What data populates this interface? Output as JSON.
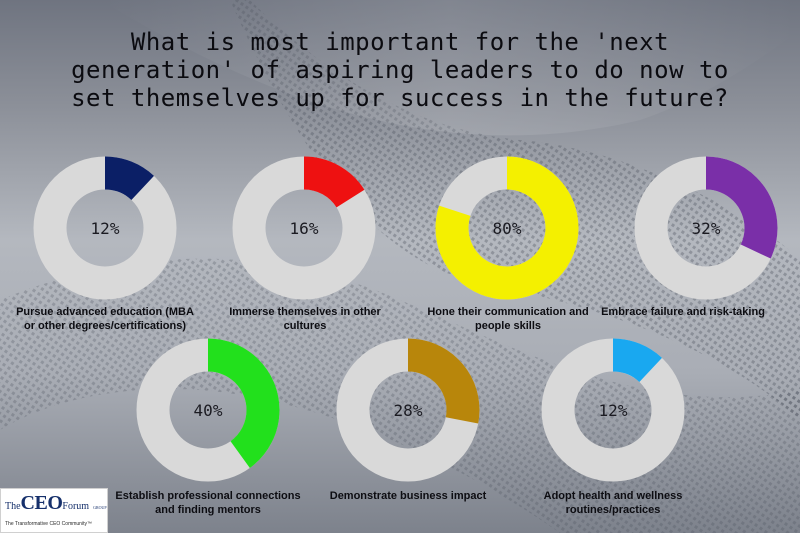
{
  "title_lines": [
    "What is most important for the 'next",
    "generation' of aspiring leaders to do now to",
    "set themselves up for success in the future?"
  ],
  "logo": {
    "brand_small_1": "The",
    "brand_big": "CEO",
    "brand_small_2": "Forum",
    "brand_sub": "GROUP",
    "tagline": "The Transformative CEO Community™"
  },
  "chart_data": [
    {
      "type": "pie",
      "label": "12%",
      "value": 12,
      "color": "#0b1f66",
      "label_lines": [
        "Pursue advanced education (MBA",
        "or other degrees/certifications)"
      ]
    },
    {
      "type": "pie",
      "label": "16%",
      "value": 16,
      "color": "#ee1111",
      "label_lines": [
        "Immerse themselves in other",
        "cultures"
      ]
    },
    {
      "type": "pie",
      "label": "80%",
      "value": 80,
      "color": "#f4f000",
      "label_lines": [
        "Hone their communication and",
        "people skills"
      ]
    },
    {
      "type": "pie",
      "label": "32%",
      "value": 32,
      "color": "#7a2fa8",
      "label_lines": [
        "Embrace failure and risk-taking"
      ]
    },
    {
      "type": "pie",
      "label": "40%",
      "value": 40,
      "color": "#22e01c",
      "label_lines": [
        "Establish professional connections",
        "and finding mentors"
      ]
    },
    {
      "type": "pie",
      "label": "28%",
      "value": 28,
      "color": "#b8860b",
      "label_lines": [
        "Demonstrate business impact"
      ]
    },
    {
      "type": "pie",
      "label": "12%",
      "value": 12,
      "color": "#19a8f0",
      "label_lines": [
        "Adopt health and wellness",
        "routines/practices"
      ]
    }
  ],
  "colors": {
    "track": "#d9d9d9"
  }
}
